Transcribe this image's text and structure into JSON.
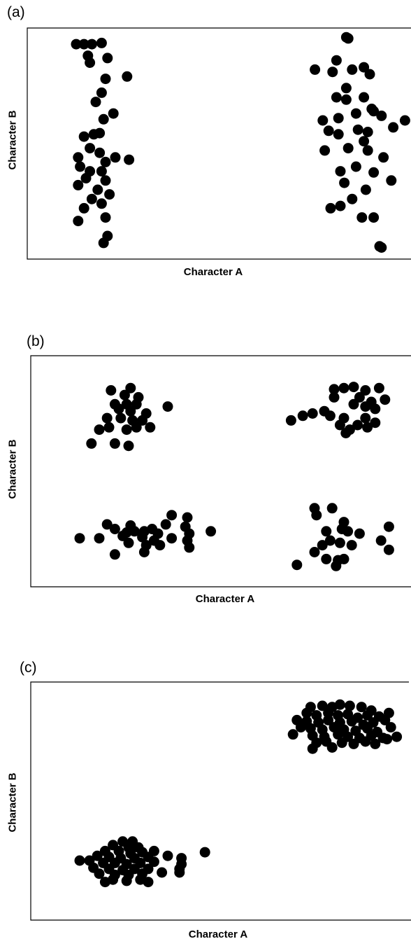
{
  "chart_data": [
    {
      "type": "scatter",
      "panel_label": "(a)",
      "xlabel": "Character A",
      "ylabel": "Character B",
      "points": [
        [
          0.125,
          0.93
        ],
        [
          0.145,
          0.93
        ],
        [
          0.165,
          0.93
        ],
        [
          0.19,
          0.935
        ],
        [
          0.155,
          0.88
        ],
        [
          0.16,
          0.85
        ],
        [
          0.205,
          0.87
        ],
        [
          0.2,
          0.78
        ],
        [
          0.255,
          0.79
        ],
        [
          0.19,
          0.72
        ],
        [
          0.175,
          0.68
        ],
        [
          0.22,
          0.63
        ],
        [
          0.195,
          0.605
        ],
        [
          0.17,
          0.54
        ],
        [
          0.185,
          0.545
        ],
        [
          0.145,
          0.53
        ],
        [
          0.16,
          0.48
        ],
        [
          0.185,
          0.46
        ],
        [
          0.13,
          0.44
        ],
        [
          0.2,
          0.42
        ],
        [
          0.225,
          0.44
        ],
        [
          0.26,
          0.43
        ],
        [
          0.135,
          0.4
        ],
        [
          0.16,
          0.38
        ],
        [
          0.19,
          0.38
        ],
        [
          0.15,
          0.35
        ],
        [
          0.2,
          0.34
        ],
        [
          0.13,
          0.32
        ],
        [
          0.18,
          0.3
        ],
        [
          0.21,
          0.28
        ],
        [
          0.165,
          0.26
        ],
        [
          0.145,
          0.22
        ],
        [
          0.19,
          0.24
        ],
        [
          0.2,
          0.18
        ],
        [
          0.13,
          0.165
        ],
        [
          0.205,
          0.1
        ],
        [
          0.195,
          0.07
        ],
        [
          0.815,
          0.96
        ],
        [
          0.82,
          0.955
        ],
        [
          0.735,
          0.82
        ],
        [
          0.78,
          0.81
        ],
        [
          0.79,
          0.86
        ],
        [
          0.83,
          0.82
        ],
        [
          0.86,
          0.83
        ],
        [
          0.875,
          0.8
        ],
        [
          0.815,
          0.74
        ],
        [
          0.79,
          0.7
        ],
        [
          0.815,
          0.69
        ],
        [
          0.86,
          0.7
        ],
        [
          0.88,
          0.65
        ],
        [
          0.755,
          0.6
        ],
        [
          0.795,
          0.61
        ],
        [
          0.84,
          0.63
        ],
        [
          0.885,
          0.64
        ],
        [
          0.905,
          0.62
        ],
        [
          0.935,
          0.57
        ],
        [
          0.965,
          0.6
        ],
        [
          0.77,
          0.555
        ],
        [
          0.795,
          0.54
        ],
        [
          0.845,
          0.56
        ],
        [
          0.87,
          0.55
        ],
        [
          0.86,
          0.51
        ],
        [
          0.76,
          0.47
        ],
        [
          0.82,
          0.48
        ],
        [
          0.87,
          0.47
        ],
        [
          0.91,
          0.44
        ],
        [
          0.84,
          0.4
        ],
        [
          0.8,
          0.38
        ],
        [
          0.885,
          0.375
        ],
        [
          0.81,
          0.33
        ],
        [
          0.865,
          0.3
        ],
        [
          0.83,
          0.26
        ],
        [
          0.93,
          0.34
        ],
        [
          0.775,
          0.22
        ],
        [
          0.8,
          0.23
        ],
        [
          0.855,
          0.18
        ],
        [
          0.885,
          0.18
        ],
        [
          0.9,
          0.055
        ],
        [
          0.905,
          0.05
        ]
      ]
    },
    {
      "type": "scatter",
      "panel_label": "(b)",
      "xlabel": "Character A",
      "ylabel": "Character B",
      "points": [
        [
          0.205,
          0.85
        ],
        [
          0.255,
          0.86
        ],
        [
          0.24,
          0.83
        ],
        [
          0.275,
          0.82
        ],
        [
          0.215,
          0.79
        ],
        [
          0.245,
          0.79
        ],
        [
          0.27,
          0.79
        ],
        [
          0.225,
          0.77
        ],
        [
          0.255,
          0.76
        ],
        [
          0.295,
          0.75
        ],
        [
          0.35,
          0.78
        ],
        [
          0.195,
          0.73
        ],
        [
          0.23,
          0.73
        ],
        [
          0.26,
          0.72
        ],
        [
          0.285,
          0.72
        ],
        [
          0.175,
          0.68
        ],
        [
          0.2,
          0.69
        ],
        [
          0.245,
          0.68
        ],
        [
          0.305,
          0.69
        ],
        [
          0.27,
          0.69
        ],
        [
          0.155,
          0.62
        ],
        [
          0.215,
          0.62
        ],
        [
          0.25,
          0.61
        ],
        [
          0.775,
          0.855
        ],
        [
          0.8,
          0.86
        ],
        [
          0.825,
          0.865
        ],
        [
          0.855,
          0.85
        ],
        [
          0.89,
          0.86
        ],
        [
          0.775,
          0.82
        ],
        [
          0.84,
          0.82
        ],
        [
          0.87,
          0.8
        ],
        [
          0.905,
          0.81
        ],
        [
          0.825,
          0.79
        ],
        [
          0.855,
          0.78
        ],
        [
          0.88,
          0.77
        ],
        [
          0.72,
          0.75
        ],
        [
          0.75,
          0.76
        ],
        [
          0.695,
          0.74
        ],
        [
          0.765,
          0.74
        ],
        [
          0.8,
          0.73
        ],
        [
          0.855,
          0.73
        ],
        [
          0.665,
          0.72
        ],
        [
          0.79,
          0.7
        ],
        [
          0.835,
          0.7
        ],
        [
          0.86,
          0.69
        ],
        [
          0.88,
          0.71
        ],
        [
          0.815,
          0.68
        ],
        [
          0.805,
          0.665
        ],
        [
          0.36,
          0.31
        ],
        [
          0.4,
          0.3
        ],
        [
          0.195,
          0.27
        ],
        [
          0.255,
          0.265
        ],
        [
          0.345,
          0.27
        ],
        [
          0.395,
          0.26
        ],
        [
          0.215,
          0.25
        ],
        [
          0.29,
          0.24
        ],
        [
          0.31,
          0.25
        ],
        [
          0.245,
          0.235
        ],
        [
          0.265,
          0.24
        ],
        [
          0.325,
          0.23
        ],
        [
          0.405,
          0.23
        ],
        [
          0.235,
          0.22
        ],
        [
          0.285,
          0.215
        ],
        [
          0.175,
          0.21
        ],
        [
          0.315,
          0.2
        ],
        [
          0.36,
          0.21
        ],
        [
          0.4,
          0.2
        ],
        [
          0.25,
          0.19
        ],
        [
          0.295,
          0.18
        ],
        [
          0.33,
          0.18
        ],
        [
          0.405,
          0.17
        ],
        [
          0.215,
          0.14
        ],
        [
          0.29,
          0.15
        ],
        [
          0.125,
          0.21
        ],
        [
          0.46,
          0.24
        ],
        [
          0.725,
          0.34
        ],
        [
          0.77,
          0.34
        ],
        [
          0.73,
          0.31
        ],
        [
          0.8,
          0.28
        ],
        [
          0.795,
          0.25
        ],
        [
          0.755,
          0.24
        ],
        [
          0.81,
          0.24
        ],
        [
          0.84,
          0.23
        ],
        [
          0.765,
          0.2
        ],
        [
          0.79,
          0.19
        ],
        [
          0.82,
          0.18
        ],
        [
          0.895,
          0.2
        ],
        [
          0.915,
          0.26
        ],
        [
          0.745,
          0.18
        ],
        [
          0.725,
          0.15
        ],
        [
          0.755,
          0.12
        ],
        [
          0.8,
          0.12
        ],
        [
          0.785,
          0.115
        ],
        [
          0.915,
          0.16
        ],
        [
          0.68,
          0.095
        ],
        [
          0.78,
          0.09
        ]
      ]
    },
    {
      "type": "scatter",
      "panel_label": "(c)",
      "xlabel": "Character A",
      "ylabel": "Character B",
      "points": [
        [
          0.715,
          0.895
        ],
        [
          0.745,
          0.9
        ],
        [
          0.77,
          0.895
        ],
        [
          0.79,
          0.905
        ],
        [
          0.815,
          0.9
        ],
        [
          0.845,
          0.895
        ],
        [
          0.87,
          0.88
        ],
        [
          0.705,
          0.87
        ],
        [
          0.73,
          0.86
        ],
        [
          0.76,
          0.87
        ],
        [
          0.785,
          0.86
        ],
        [
          0.81,
          0.865
        ],
        [
          0.835,
          0.85
        ],
        [
          0.86,
          0.86
        ],
        [
          0.89,
          0.855
        ],
        [
          0.915,
          0.87
        ],
        [
          0.68,
          0.84
        ],
        [
          0.705,
          0.835
        ],
        [
          0.735,
          0.83
        ],
        [
          0.76,
          0.84
        ],
        [
          0.79,
          0.83
        ],
        [
          0.82,
          0.835
        ],
        [
          0.85,
          0.82
        ],
        [
          0.875,
          0.83
        ],
        [
          0.905,
          0.84
        ],
        [
          0.69,
          0.81
        ],
        [
          0.715,
          0.805
        ],
        [
          0.745,
          0.8
        ],
        [
          0.775,
          0.81
        ],
        [
          0.8,
          0.8
        ],
        [
          0.83,
          0.795
        ],
        [
          0.86,
          0.805
        ],
        [
          0.885,
          0.79
        ],
        [
          0.92,
          0.81
        ],
        [
          0.67,
          0.78
        ],
        [
          0.72,
          0.775
        ],
        [
          0.75,
          0.77
        ],
        [
          0.785,
          0.78
        ],
        [
          0.81,
          0.77
        ],
        [
          0.84,
          0.765
        ],
        [
          0.87,
          0.775
        ],
        [
          0.9,
          0.765
        ],
        [
          0.935,
          0.77
        ],
        [
          0.73,
          0.745
        ],
        [
          0.755,
          0.75
        ],
        [
          0.795,
          0.745
        ],
        [
          0.825,
          0.74
        ],
        [
          0.855,
          0.75
        ],
        [
          0.72,
          0.72
        ],
        [
          0.77,
          0.725
        ],
        [
          0.88,
          0.74
        ],
        [
          0.91,
          0.76
        ],
        [
          0.235,
          0.33
        ],
        [
          0.26,
          0.33
        ],
        [
          0.21,
          0.315
        ],
        [
          0.25,
          0.305
        ],
        [
          0.275,
          0.305
        ],
        [
          0.19,
          0.29
        ],
        [
          0.225,
          0.29
        ],
        [
          0.255,
          0.28
        ],
        [
          0.285,
          0.285
        ],
        [
          0.315,
          0.29
        ],
        [
          0.17,
          0.27
        ],
        [
          0.2,
          0.265
        ],
        [
          0.23,
          0.26
        ],
        [
          0.265,
          0.26
        ],
        [
          0.3,
          0.265
        ],
        [
          0.35,
          0.27
        ],
        [
          0.385,
          0.26
        ],
        [
          0.125,
          0.25
        ],
        [
          0.15,
          0.25
        ],
        [
          0.185,
          0.24
        ],
        [
          0.215,
          0.24
        ],
        [
          0.245,
          0.235
        ],
        [
          0.28,
          0.24
        ],
        [
          0.315,
          0.245
        ],
        [
          0.385,
          0.235
        ],
        [
          0.16,
          0.22
        ],
        [
          0.2,
          0.215
        ],
        [
          0.235,
          0.21
        ],
        [
          0.265,
          0.215
        ],
        [
          0.3,
          0.215
        ],
        [
          0.175,
          0.195
        ],
        [
          0.215,
          0.19
        ],
        [
          0.25,
          0.19
        ],
        [
          0.285,
          0.195
        ],
        [
          0.335,
          0.2
        ],
        [
          0.38,
          0.2
        ],
        [
          0.21,
          0.17
        ],
        [
          0.245,
          0.165
        ],
        [
          0.28,
          0.17
        ],
        [
          0.19,
          0.16
        ],
        [
          0.3,
          0.16
        ],
        [
          0.445,
          0.285
        ],
        [
          0.38,
          0.215
        ]
      ]
    }
  ]
}
